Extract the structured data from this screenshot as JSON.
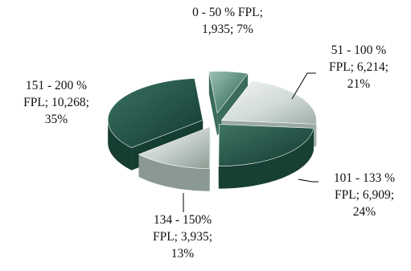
{
  "chart_data": {
    "type": "pie",
    "style": "3d-exploded",
    "title": "",
    "slices": [
      {
        "name": "0 - 50 % FPL",
        "value": 1935,
        "percent": 7,
        "label_lines": [
          "0 - 50 % FPL;",
          "1,935;  7%"
        ],
        "color": "#5b8c7c"
      },
      {
        "name": "51 - 100 % FPL",
        "value": 6214,
        "percent": 21,
        "label_lines": [
          "51 - 100 %",
          "FPL;  6,214;",
          "21%"
        ],
        "color": "#d4dcd7"
      },
      {
        "name": "101 - 133 % FPL",
        "value": 6909,
        "percent": 24,
        "label_lines": [
          "101 - 133 %",
          "FPL;  6,909;",
          "24%"
        ],
        "color": "#2b5b4c"
      },
      {
        "name": "134 - 150% FPL",
        "value": 3935,
        "percent": 13,
        "label_lines": [
          "134 - 150%",
          "FPL;  3,935;",
          "13%"
        ],
        "color": "#c6cfca"
      },
      {
        "name": "151 - 200 % FPL",
        "value": 10268,
        "percent": 35,
        "label_lines": [
          "151 - 200 %",
          "FPL;  10,268;",
          "35%"
        ],
        "color": "#2a5a4b"
      }
    ]
  }
}
